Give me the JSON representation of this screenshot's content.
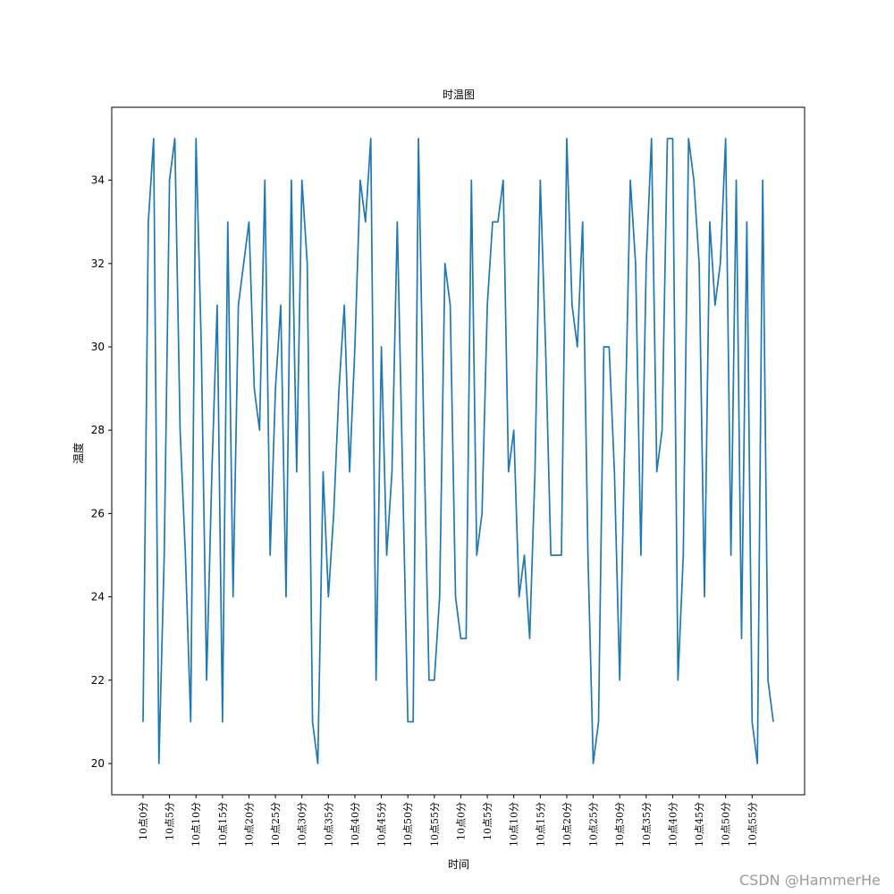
{
  "chart_data": {
    "type": "line",
    "title": "时温图",
    "xlabel": "时间",
    "ylabel": "温度",
    "ylim": [
      19.25,
      35.75
    ],
    "yticks": [
      20,
      22,
      24,
      26,
      28,
      30,
      32,
      34
    ],
    "grid": false,
    "x_tick_labels": [
      "10点0分",
      "10点5分",
      "10点10分",
      "10点15分",
      "10点20分",
      "10点25分",
      "10点30分",
      "10点35分",
      "10点40分",
      "10点45分",
      "10点50分",
      "10点55分",
      "10点0分",
      "10点5分",
      "10点10分",
      "10点15分",
      "10点20分",
      "10点25分",
      "10点30分",
      "10点35分",
      "10点40分",
      "10点45分",
      "10点50分",
      "10点55分"
    ],
    "x_tick_every": 5,
    "line_color": "#1f77b4",
    "series": [
      {
        "values": [
          21,
          33,
          35,
          20,
          25,
          34,
          35,
          28,
          25,
          21,
          35,
          30,
          22,
          27,
          31,
          21,
          33,
          24,
          31,
          32,
          33,
          29,
          28,
          34,
          25,
          29,
          31,
          24,
          34,
          27,
          34,
          32,
          21,
          20,
          27,
          24,
          26,
          29,
          31,
          27,
          30,
          34,
          33,
          35,
          22,
          30,
          25,
          27,
          33,
          27,
          21,
          21,
          35,
          28,
          22,
          22,
          24,
          32,
          31,
          24,
          23,
          23,
          34,
          25,
          26,
          31,
          33,
          33,
          34,
          27,
          28,
          24,
          25,
          23,
          27,
          34,
          30,
          25,
          25,
          25,
          35,
          31,
          30,
          33,
          25,
          20,
          21,
          30,
          30,
          27,
          22,
          28,
          34,
          32,
          25,
          32,
          35,
          27,
          28,
          35,
          35,
          22,
          25,
          35,
          34,
          32,
          24,
          33,
          31,
          32,
          35,
          25,
          34,
          23,
          33,
          21,
          20,
          34,
          22,
          21
        ]
      }
    ]
  },
  "watermark": "CSDN @HammerHe"
}
